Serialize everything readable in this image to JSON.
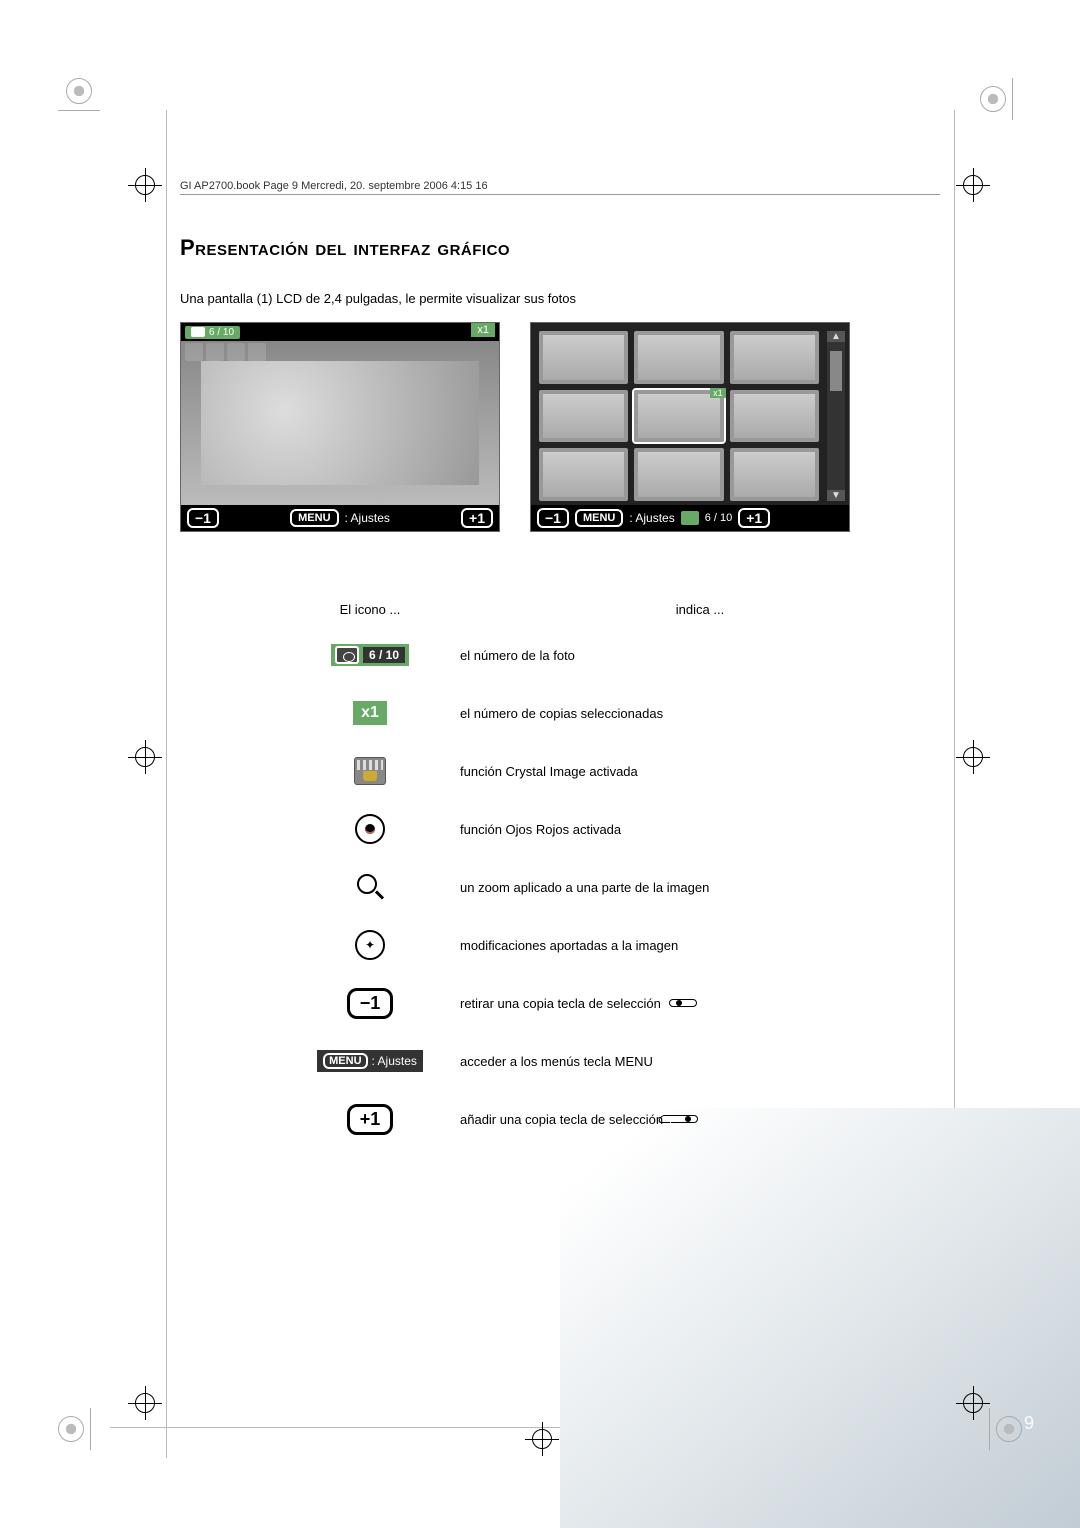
{
  "header_line": "GI AP2700.book  Page 9  Mercredi, 20. septembre 2006  4:15 16",
  "title": "Presentación del interfaz gráfico",
  "subtitle": "Una pantalla (1) LCD de 2,4 pulgadas, le permite visualizar sus fotos",
  "page_number": "9",
  "shot_a": {
    "counter": "6 / 10",
    "x1": "x1",
    "menu": "MENU",
    "ajustes": ": Ajustes",
    "minus": "−1",
    "plus": "+1"
  },
  "shot_b": {
    "menu": "MENU",
    "ajustes": ": Ajustes",
    "counter": "6 / 10",
    "minus": "−1",
    "plus": "+1",
    "x1": "x1"
  },
  "legend": {
    "head_icon": "El icono ...",
    "head_meaning": "indica ...",
    "rows": [
      {
        "icon": "counter",
        "counter_text": "6 / 10",
        "text": "el número de la foto"
      },
      {
        "icon": "x1",
        "label": "x1",
        "text": "el número de copias seleccionadas"
      },
      {
        "icon": "crystal",
        "text": "función Crystal Image activada"
      },
      {
        "icon": "redeye",
        "text": "función Ojos Rojos activada"
      },
      {
        "icon": "zoom",
        "text": "un zoom aplicado a una parte de la imagen"
      },
      {
        "icon": "mod",
        "text": "modificaciones aportadas a la imagen"
      },
      {
        "icon": "minus1",
        "label": "−1",
        "text": "retirar una copia tecla de selección",
        "select_btn": "left"
      },
      {
        "icon": "menu_ajustes",
        "menu": "MENU",
        "aj": ": Ajustes",
        "text": "acceder a los menús tecla MENU"
      },
      {
        "icon": "plus1",
        "label": "+1",
        "text": "añadir una copia tecla de selección",
        "select_btn": "right"
      }
    ]
  }
}
